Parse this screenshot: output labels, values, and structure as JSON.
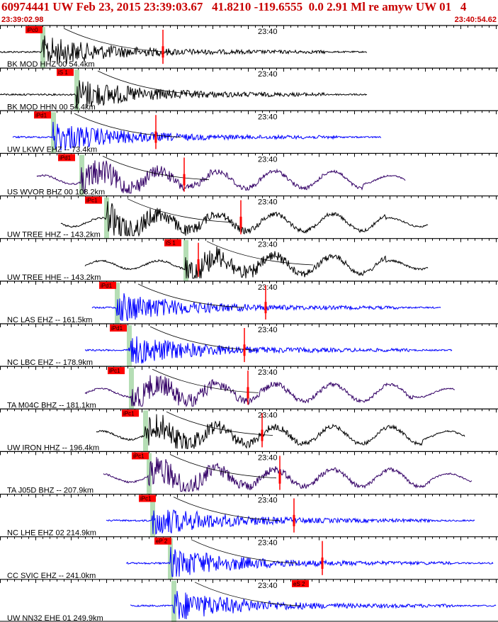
{
  "header": {
    "title": "60974441 UW Feb 23, 2015 23:39:03.67   41.8210 -119.6555  0.0 2.91 Ml re amyw UW 01   4",
    "start_time": "23:39:02.98",
    "end_time": "23:40:54.62"
  },
  "chart_data": {
    "type": "line",
    "title": "60974441 UW Feb 23, 2015 23:39:03.67   41.8210 -119.6555  0.0 2.91 Ml re amyw UW 01   4",
    "x_range": [
      "23:39:02.98",
      "23:40:54.62"
    ],
    "time_marker": "23:40",
    "colors": {
      "pick": "#ff0000",
      "marker_window": "#a8d8a8",
      "red_spike": "#ff0000"
    },
    "traces": [
      {
        "label": "BK MOD HHZ 00 54.4km",
        "pick": "iPc0",
        "color": "#000000"
      },
      {
        "label": "BK MOD HHN 00 54.4km",
        "pick": "iS 1",
        "color": "#000000"
      },
      {
        "label": "UW LKWV EHZ -- 73.4km",
        "pick": "iPd1",
        "color": "#0000ff"
      },
      {
        "label": "US WVOR BHZ 00 108.2km",
        "pick": "iPd1",
        "color": "#330066"
      },
      {
        "label": "UW TREE HHZ -- 143.2km",
        "pick": "iPc1",
        "color": "#000000"
      },
      {
        "label": "UW TREE HHE -- 143.2km",
        "pick": "iS 1",
        "color": "#000000"
      },
      {
        "label": "NC LAS EHZ -- 161.5km",
        "pick": "iPd1",
        "color": "#0000ff"
      },
      {
        "label": "NC LBC EHZ -- 178.9km",
        "pick": "iPd1",
        "color": "#0000ff"
      },
      {
        "label": "TA M04C BHZ -- 181.1km",
        "pick": "iPc1",
        "color": "#330066"
      },
      {
        "label": "UW IRON HHZ -- 196.4km",
        "pick": "iPc1",
        "color": "#000000"
      },
      {
        "label": "TA J05D BHZ -- 207.9km",
        "pick": "iPc1",
        "color": "#330066"
      },
      {
        "label": "NC LHE EHZ 02 214.9km",
        "pick": "iPc1",
        "color": "#0000ff"
      },
      {
        "label": "CC SVIC EHZ -- 241.0km",
        "pick": "eP 2",
        "color": "#0000ff"
      },
      {
        "label": "UW NN32 EHE 01 249.9km",
        "pick": "eS 2",
        "color": "#0000ff"
      }
    ]
  }
}
